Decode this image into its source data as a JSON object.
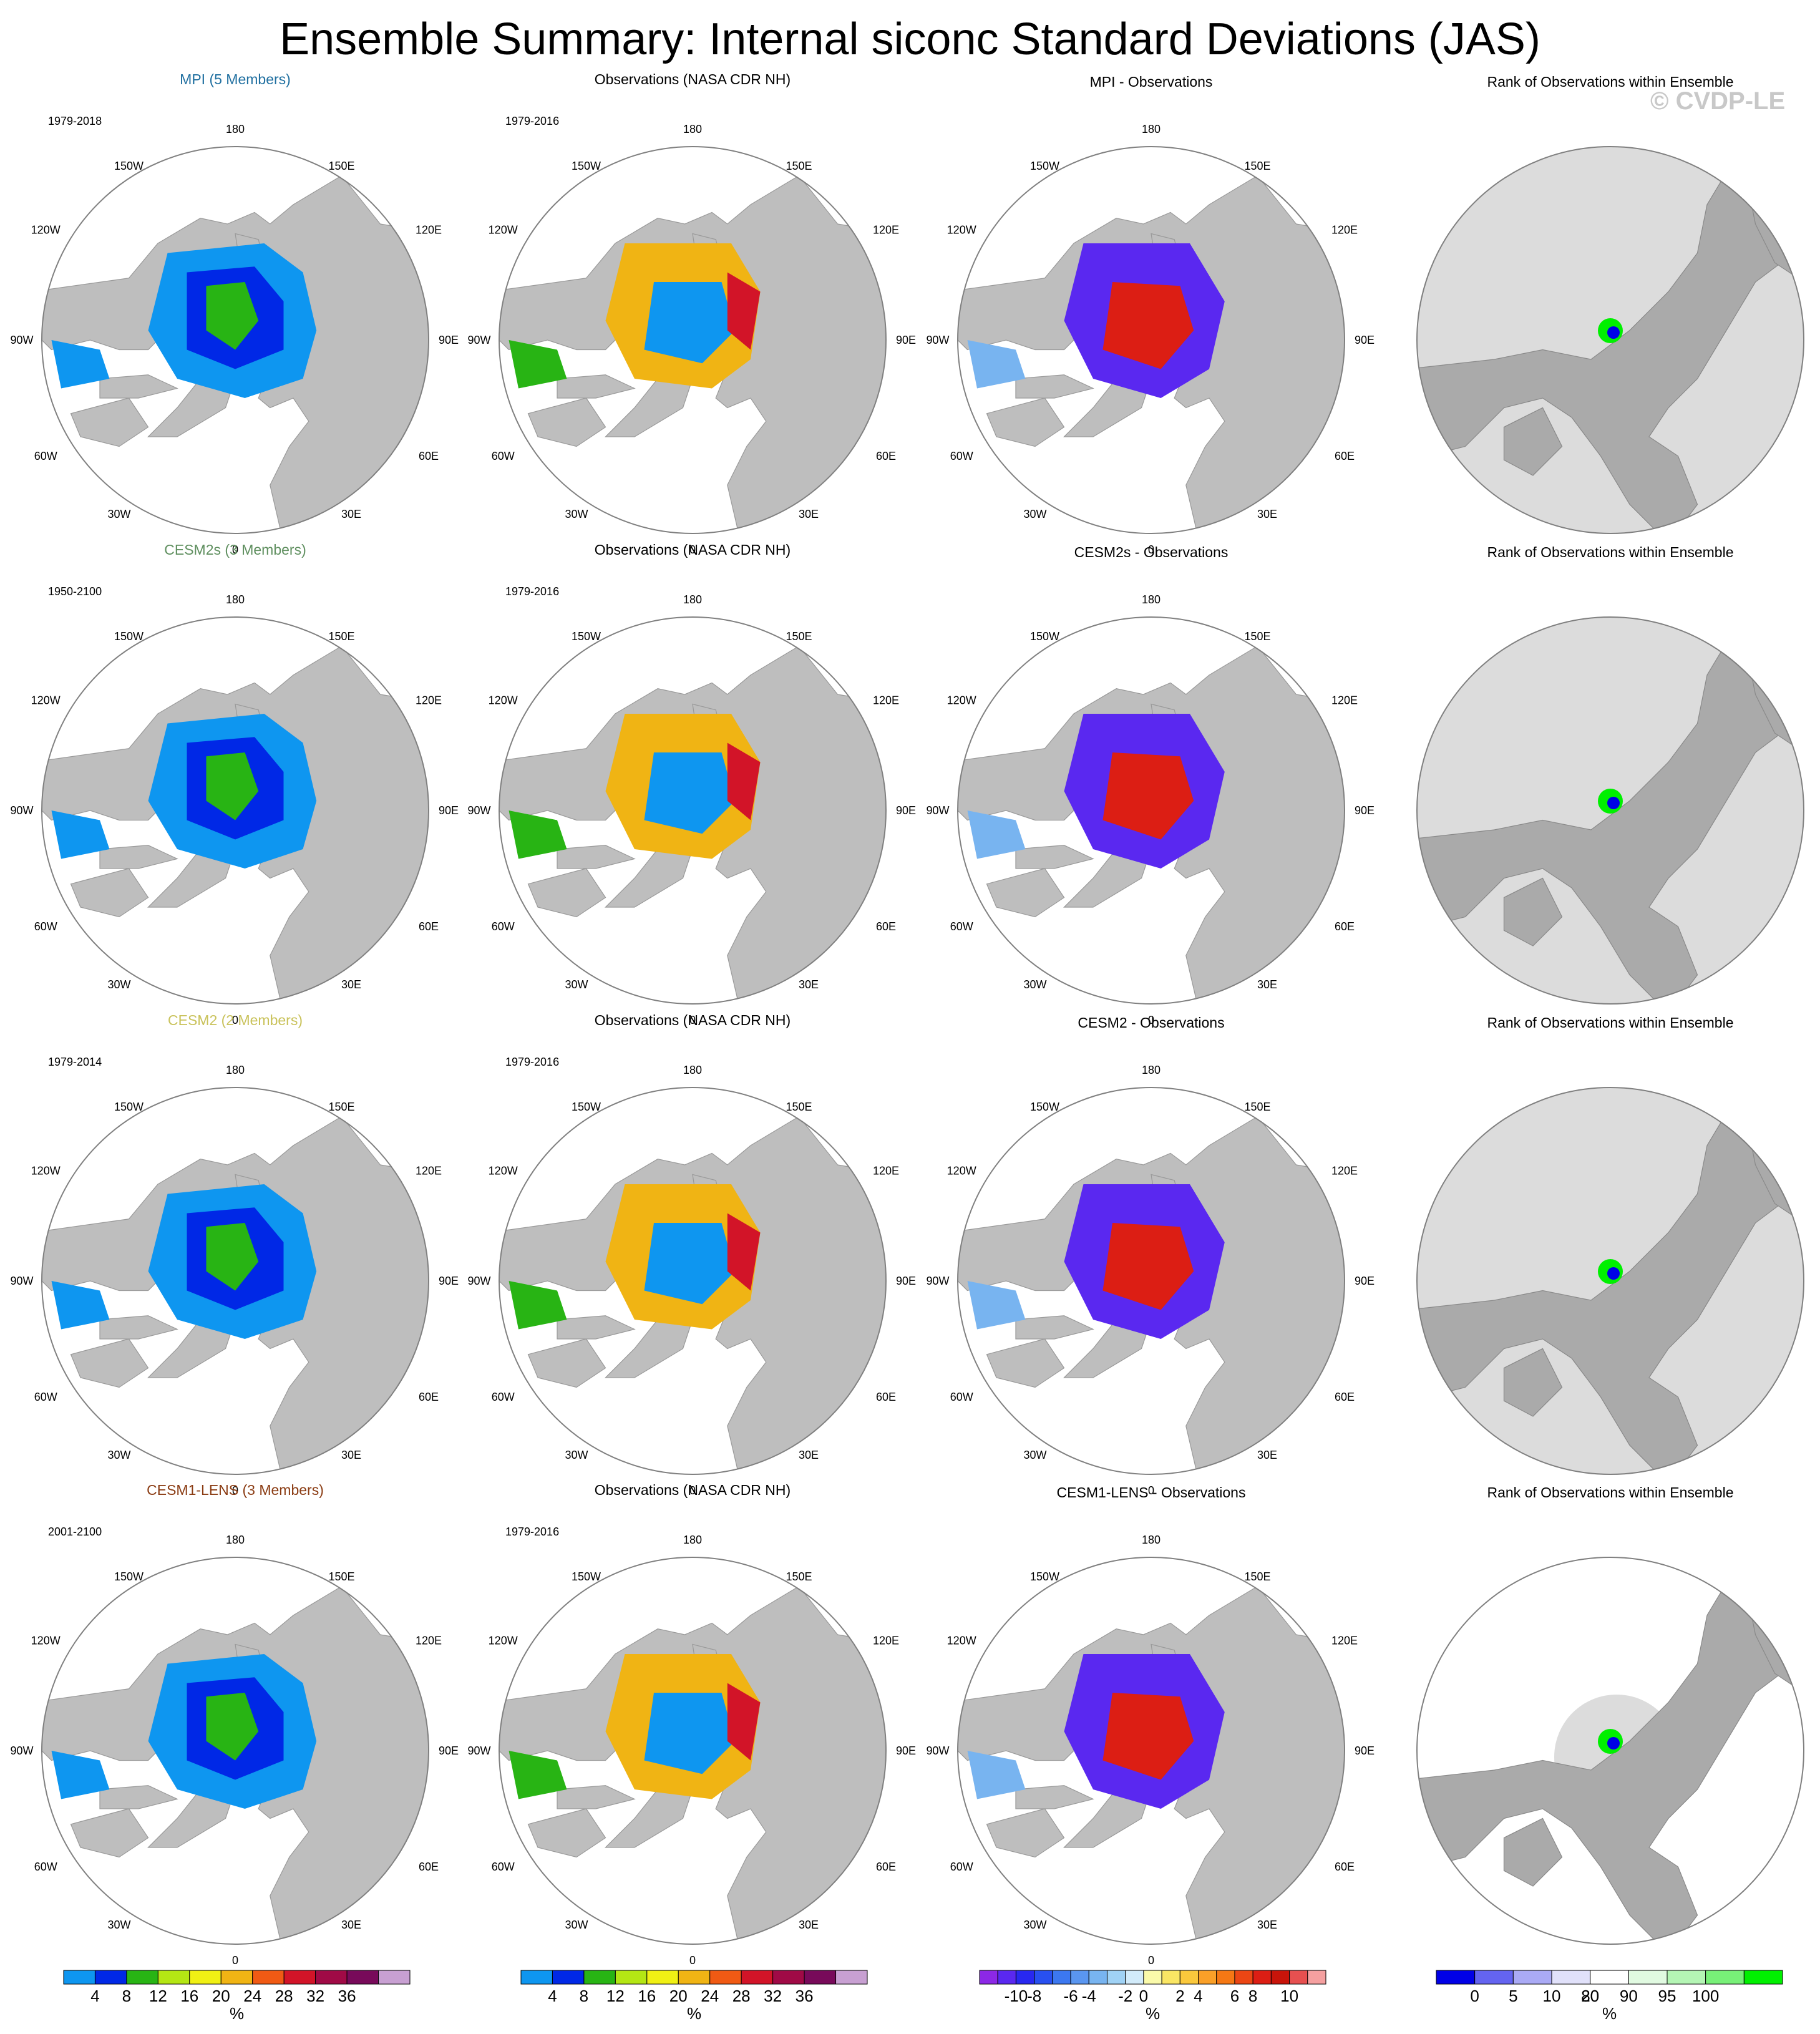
{
  "title": "Ensemble Summary: Internal siconc Standard Deviations (JAS)",
  "watermark": "© CVDP-LE",
  "lon_labels": {
    "top": "180",
    "top_left": "150W",
    "top_right": "150E",
    "left_upper": "120W",
    "right_upper": "120E",
    "left": "90W",
    "right": "90E",
    "left_lower": "60W",
    "right_lower": "60E",
    "bottom_left": "30W",
    "bottom_right": "30E",
    "bottom": "0"
  },
  "rows": [
    {
      "model_title": "MPI (5 Members)",
      "model_color": "#1f6fa0",
      "model_years": "1979-2018",
      "obs_title": "Observations (NASA CDR NH)",
      "obs_years": "1979-2016",
      "diff_title": "MPI - Observations",
      "rank_title": "Rank of Observations within Ensemble"
    },
    {
      "model_title": "CESM2s (3 Members)",
      "model_color": "#5f8f5f",
      "model_years": "1950-2100",
      "obs_title": "Observations (NASA CDR NH)",
      "obs_years": "1979-2016",
      "diff_title": "CESM2s - Observations",
      "rank_title": "Rank of Observations within Ensemble"
    },
    {
      "model_title": "CESM2 (2 Members)",
      "model_color": "#c9c25a",
      "model_years": "1979-2014",
      "obs_title": "Observations (NASA CDR NH)",
      "obs_years": "1979-2016",
      "diff_title": "CESM2 - Observations",
      "rank_title": "Rank of Observations within Ensemble"
    },
    {
      "model_title": "CESM1-LENS (3 Members)",
      "model_color": "#8a3b12",
      "model_years": "2001-2100",
      "obs_title": "Observations (NASA CDR NH)",
      "obs_years": "1979-2016",
      "diff_title": "CESM1-LENS - Observations",
      "rank_title": "Rank of Observations within Ensemble"
    }
  ],
  "colorbars": {
    "std": {
      "colors": [
        "#0e96f0",
        "#0028e6",
        "#28b414",
        "#b4e614",
        "#f0f014",
        "#f0b414",
        "#f05a14",
        "#d21428",
        "#a00a46",
        "#780a5a",
        "#c8a0d2"
      ],
      "labels": [
        "4",
        "8",
        "12",
        "16",
        "20",
        "24",
        "28",
        "32",
        "36"
      ],
      "unit": "%"
    },
    "diff": {
      "colors": [
        "#8c28e6",
        "#5a28f0",
        "#2828f0",
        "#2850f0",
        "#3c78f0",
        "#5a96f0",
        "#78b4f0",
        "#a0d2f5",
        "#d2ebfa",
        "#fafaaa",
        "#fae664",
        "#fac83c",
        "#faa028",
        "#f57814",
        "#eb4614",
        "#dc1e14",
        "#c8140a",
        "#e65050",
        "#f5a0a0"
      ],
      "labels": [
        "-10",
        "-8",
        "-6",
        "-4",
        "-2",
        "0",
        "2",
        "4",
        "6",
        "8",
        "10"
      ],
      "unit": "%"
    },
    "rank": {
      "colors": [
        "#0000e6",
        "#6464f0",
        "#aaaaf5",
        "#e1e1fa",
        "#ffffff",
        "#e1fae1",
        "#b4f5b4",
        "#78f078",
        "#00f000"
      ],
      "labels": [
        "0",
        "5",
        "10",
        "20",
        "80",
        "90",
        "95",
        "100"
      ],
      "unit": "%"
    }
  }
}
